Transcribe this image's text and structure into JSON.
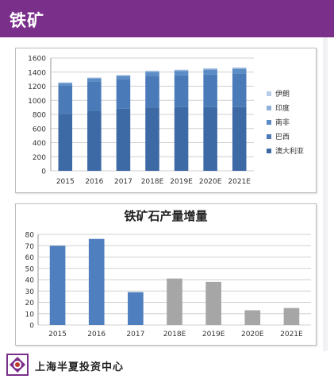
{
  "header": {
    "title": "铁矿"
  },
  "footer": {
    "company": "上海半夏投资中心"
  },
  "colors": {
    "header_bg": "#7a2f8b",
    "series": [
      "#3d6aa5",
      "#4a7bb8",
      "#5b8cc6",
      "#8fb0d8",
      "#b7cce8"
    ],
    "bar_blue": "#4f7fbe",
    "bar_gray": "#a6a6a6"
  },
  "chart_data": [
    {
      "type": "bar",
      "stacked": true,
      "title": "",
      "categories": [
        "2015",
        "2016",
        "2017",
        "2018E",
        "2019E",
        "2020E",
        "2021E"
      ],
      "ylim": [
        0,
        1600
      ],
      "yticks": [
        0,
        200,
        400,
        600,
        800,
        1000,
        1200,
        1400,
        1600
      ],
      "legend_position": "right",
      "grid": true,
      "series": [
        {
          "name": "澳大利亚",
          "values": [
            810,
            850,
            880,
            900,
            905,
            905,
            905
          ]
        },
        {
          "name": "巴西",
          "values": [
            400,
            420,
            420,
            450,
            450,
            460,
            470
          ]
        },
        {
          "name": "南非",
          "values": [
            30,
            40,
            45,
            50,
            60,
            70,
            70
          ]
        },
        {
          "name": "印度",
          "values": [
            10,
            10,
            10,
            15,
            15,
            15,
            15
          ]
        },
        {
          "name": "伊朗",
          "values": [
            5,
            5,
            5,
            5,
            5,
            5,
            5
          ]
        }
      ]
    },
    {
      "type": "bar",
      "title": "铁矿石产量增量",
      "categories": [
        "2015",
        "2016",
        "2017",
        "2018E",
        "2019E",
        "2020E",
        "2021E"
      ],
      "values": [
        70,
        76,
        29,
        41,
        38,
        13,
        15
      ],
      "bar_colors": [
        "#4f7fbe",
        "#4f7fbe",
        "#4f7fbe",
        "#a6a6a6",
        "#a6a6a6",
        "#a6a6a6",
        "#a6a6a6"
      ],
      "ylim": [
        0,
        80
      ],
      "yticks": [
        0,
        10,
        20,
        30,
        40,
        50,
        60,
        70,
        80
      ],
      "grid": true
    }
  ]
}
